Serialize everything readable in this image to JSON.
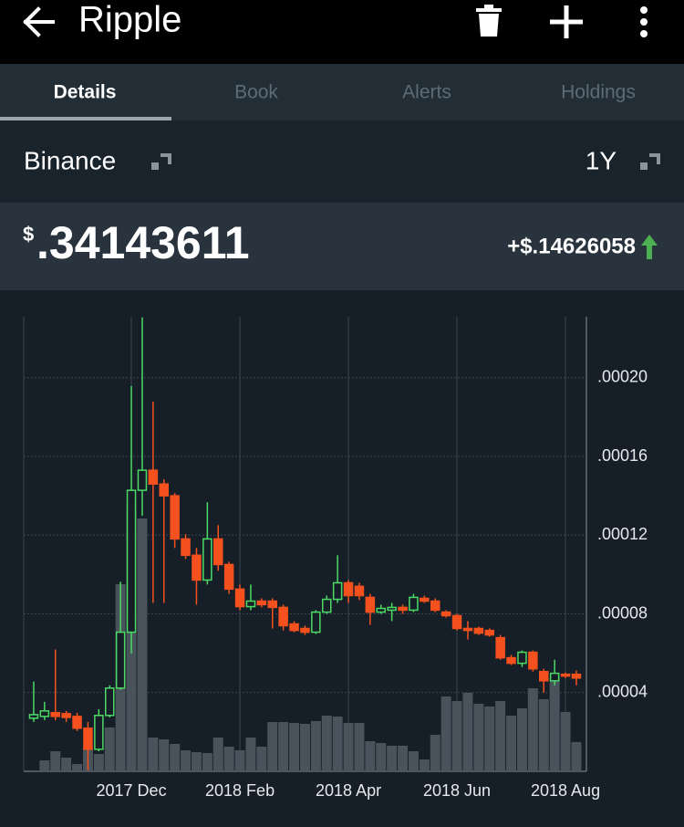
{
  "header": {
    "title": "Ripple"
  },
  "tabs": [
    "Details",
    "Book",
    "Alerts",
    "Holdings"
  ],
  "exchange": "Binance",
  "range": "1Y",
  "price": {
    "currency": "$",
    "value": ".34143611",
    "change": "+$.14626058"
  },
  "chart_data": {
    "type": "candlestick",
    "categories": [
      null,
      null,
      null,
      null,
      null,
      null,
      null,
      null,
      null,
      "2017 Dec",
      null,
      null,
      null,
      null,
      null,
      null,
      null,
      null,
      null,
      "2018 Feb",
      null,
      null,
      null,
      null,
      null,
      null,
      null,
      null,
      null,
      "2018 Apr",
      null,
      null,
      null,
      null,
      null,
      null,
      null,
      null,
      null,
      "2018 Jun",
      null,
      null,
      null,
      null,
      null,
      null,
      null,
      null,
      null,
      "2018 Aug",
      null
    ],
    "open": [
      2.7e-05,
      2.79e-05,
      2.98e-05,
      2.93e-05,
      2.79e-05,
      2.19e-05,
      1.12e-05,
      2.84e-05,
      4.23e-05,
      7.07e-05,
      0.0001428,
      0.000153,
      0.000146,
      0.00014,
      0.0001181,
      0.0001098,
      9.72e-05,
      0.0001181,
      0.0001051,
      9.26e-05,
      8.37e-05,
      8.65e-05,
      8.65e-05,
      8.33e-05,
      7.49e-05,
      7.26e-05,
      7.07e-05,
      8.09e-05,
      8.74e-05,
      9.58e-05,
      9.4e-05,
      8.84e-05,
      8.09e-05,
      8.19e-05,
      8.33e-05,
      8.19e-05,
      8.79e-05,
      8.65e-05,
      8.09e-05,
      7.91e-05,
      7.26e-05,
      7.26e-05,
      7.16e-05,
      6.79e-05,
      5.77e-05,
      5.49e-05,
      6.05e-05,
      5.07e-05,
      4.6e-05,
      4.93e-05,
      4.93e-05
    ],
    "high": [
      4.56e-05,
      3.53e-05,
      6.19e-05,
      3.07e-05,
      2.98e-05,
      2.51e-05,
      3.16e-05,
      4.37e-05,
      9.63e-05,
      0.0001958,
      0.0002307,
      0.0001879,
      0.0001484,
      0.0001414,
      0.0001205,
      0.0001135,
      0.0001367,
      0.0001251,
      0.0001065,
      9.49e-05,
      9.49e-05,
      8.79e-05,
      8.79e-05,
      8.47e-05,
      7.63e-05,
      7.4e-05,
      8.19e-05,
      8.93e-05,
      0.0001098,
      9.72e-05,
      9.58e-05,
      9.02e-05,
      8.47e-05,
      8.56e-05,
      8.47e-05,
      9.02e-05,
      8.93e-05,
      8.79e-05,
      8.19e-05,
      8e-05,
      7.63e-05,
      7.35e-05,
      7.26e-05,
      6.93e-05,
      5.91e-05,
      6.14e-05,
      6.14e-05,
      5.21e-05,
      5.67e-05,
      5.02e-05,
      5.12e-05
    ],
    "low": [
      2.51e-05,
      2.6e-05,
      2.6e-05,
      2.51e-05,
      2.05e-05,
      5e-07,
      1.02e-05,
      2.74e-05,
      4.14e-05,
      6e-05,
      0.0001298,
      8.56e-05,
      8.56e-05,
      0.0001135,
      0.0001079,
      8.47e-05,
      9.49e-05,
      0.0001019,
      9.02e-05,
      8.19e-05,
      8.19e-05,
      8.33e-05,
      7.26e-05,
      7.16e-05,
      7.07e-05,
      6.93e-05,
      6.98e-05,
      8e-05,
      8.56e-05,
      8.56e-05,
      8.7e-05,
      7.44e-05,
      8e-05,
      7.63e-05,
      8e-05,
      8.09e-05,
      8.56e-05,
      8.09e-05,
      7.81e-05,
      7.16e-05,
      6.7e-05,
      6.93e-05,
      6.84e-05,
      5.67e-05,
      5.4e-05,
      5.3e-05,
      5.07e-05,
      4e-05,
      4.37e-05,
      4.74e-05,
      4.37e-05
    ],
    "close": [
      2.88e-05,
      3.07e-05,
      2.79e-05,
      2.74e-05,
      2.19e-05,
      1.12e-05,
      2.84e-05,
      4.23e-05,
      7.07e-05,
      0.0001428,
      0.000153,
      0.000146,
      0.00014,
      0.0001181,
      0.0001098,
      9.72e-05,
      0.0001181,
      0.0001051,
      9.26e-05,
      8.37e-05,
      8.65e-05,
      8.47e-05,
      8.33e-05,
      7.4e-05,
      7.16e-05,
      7.07e-05,
      8.09e-05,
      8.74e-05,
      9.58e-05,
      8.93e-05,
      8.93e-05,
      8.09e-05,
      8.28e-05,
      8.33e-05,
      8.19e-05,
      8.84e-05,
      8.65e-05,
      8.19e-05,
      7.91e-05,
      7.26e-05,
      7.16e-05,
      7.02e-05,
      6.93e-05,
      5.77e-05,
      5.49e-05,
      6.05e-05,
      5.21e-05,
      4.6e-05,
      4.98e-05,
      4.84e-05,
      4.74e-05
    ],
    "volume": [
      0,
      12,
      22,
      15,
      8,
      27,
      19,
      48,
      205,
      287,
      277,
      37,
      35,
      30,
      23,
      21,
      20,
      37,
      27,
      23,
      37,
      27,
      54,
      54,
      53,
      52,
      55,
      61,
      60,
      53,
      53,
      33,
      31,
      28,
      28,
      22,
      13,
      40,
      82,
      77,
      86,
      74,
      71,
      77,
      61,
      69,
      91,
      79,
      102,
      65,
      32
    ],
    "up_color": "#4cd964",
    "down_color": "#f4511e",
    "volume_color": "#48535c",
    "ylim": [
      0,
      0.000231
    ],
    "yticks": [
      {
        "value": 4e-05,
        "label": ".00004"
      },
      {
        "value": 8e-05,
        "label": ".00008"
      },
      {
        "value": 0.00012,
        "label": ".00012"
      },
      {
        "value": 0.00016,
        "label": ".00016"
      },
      {
        "value": 0.0002,
        "label": ".00020"
      }
    ],
    "grid": true
  }
}
